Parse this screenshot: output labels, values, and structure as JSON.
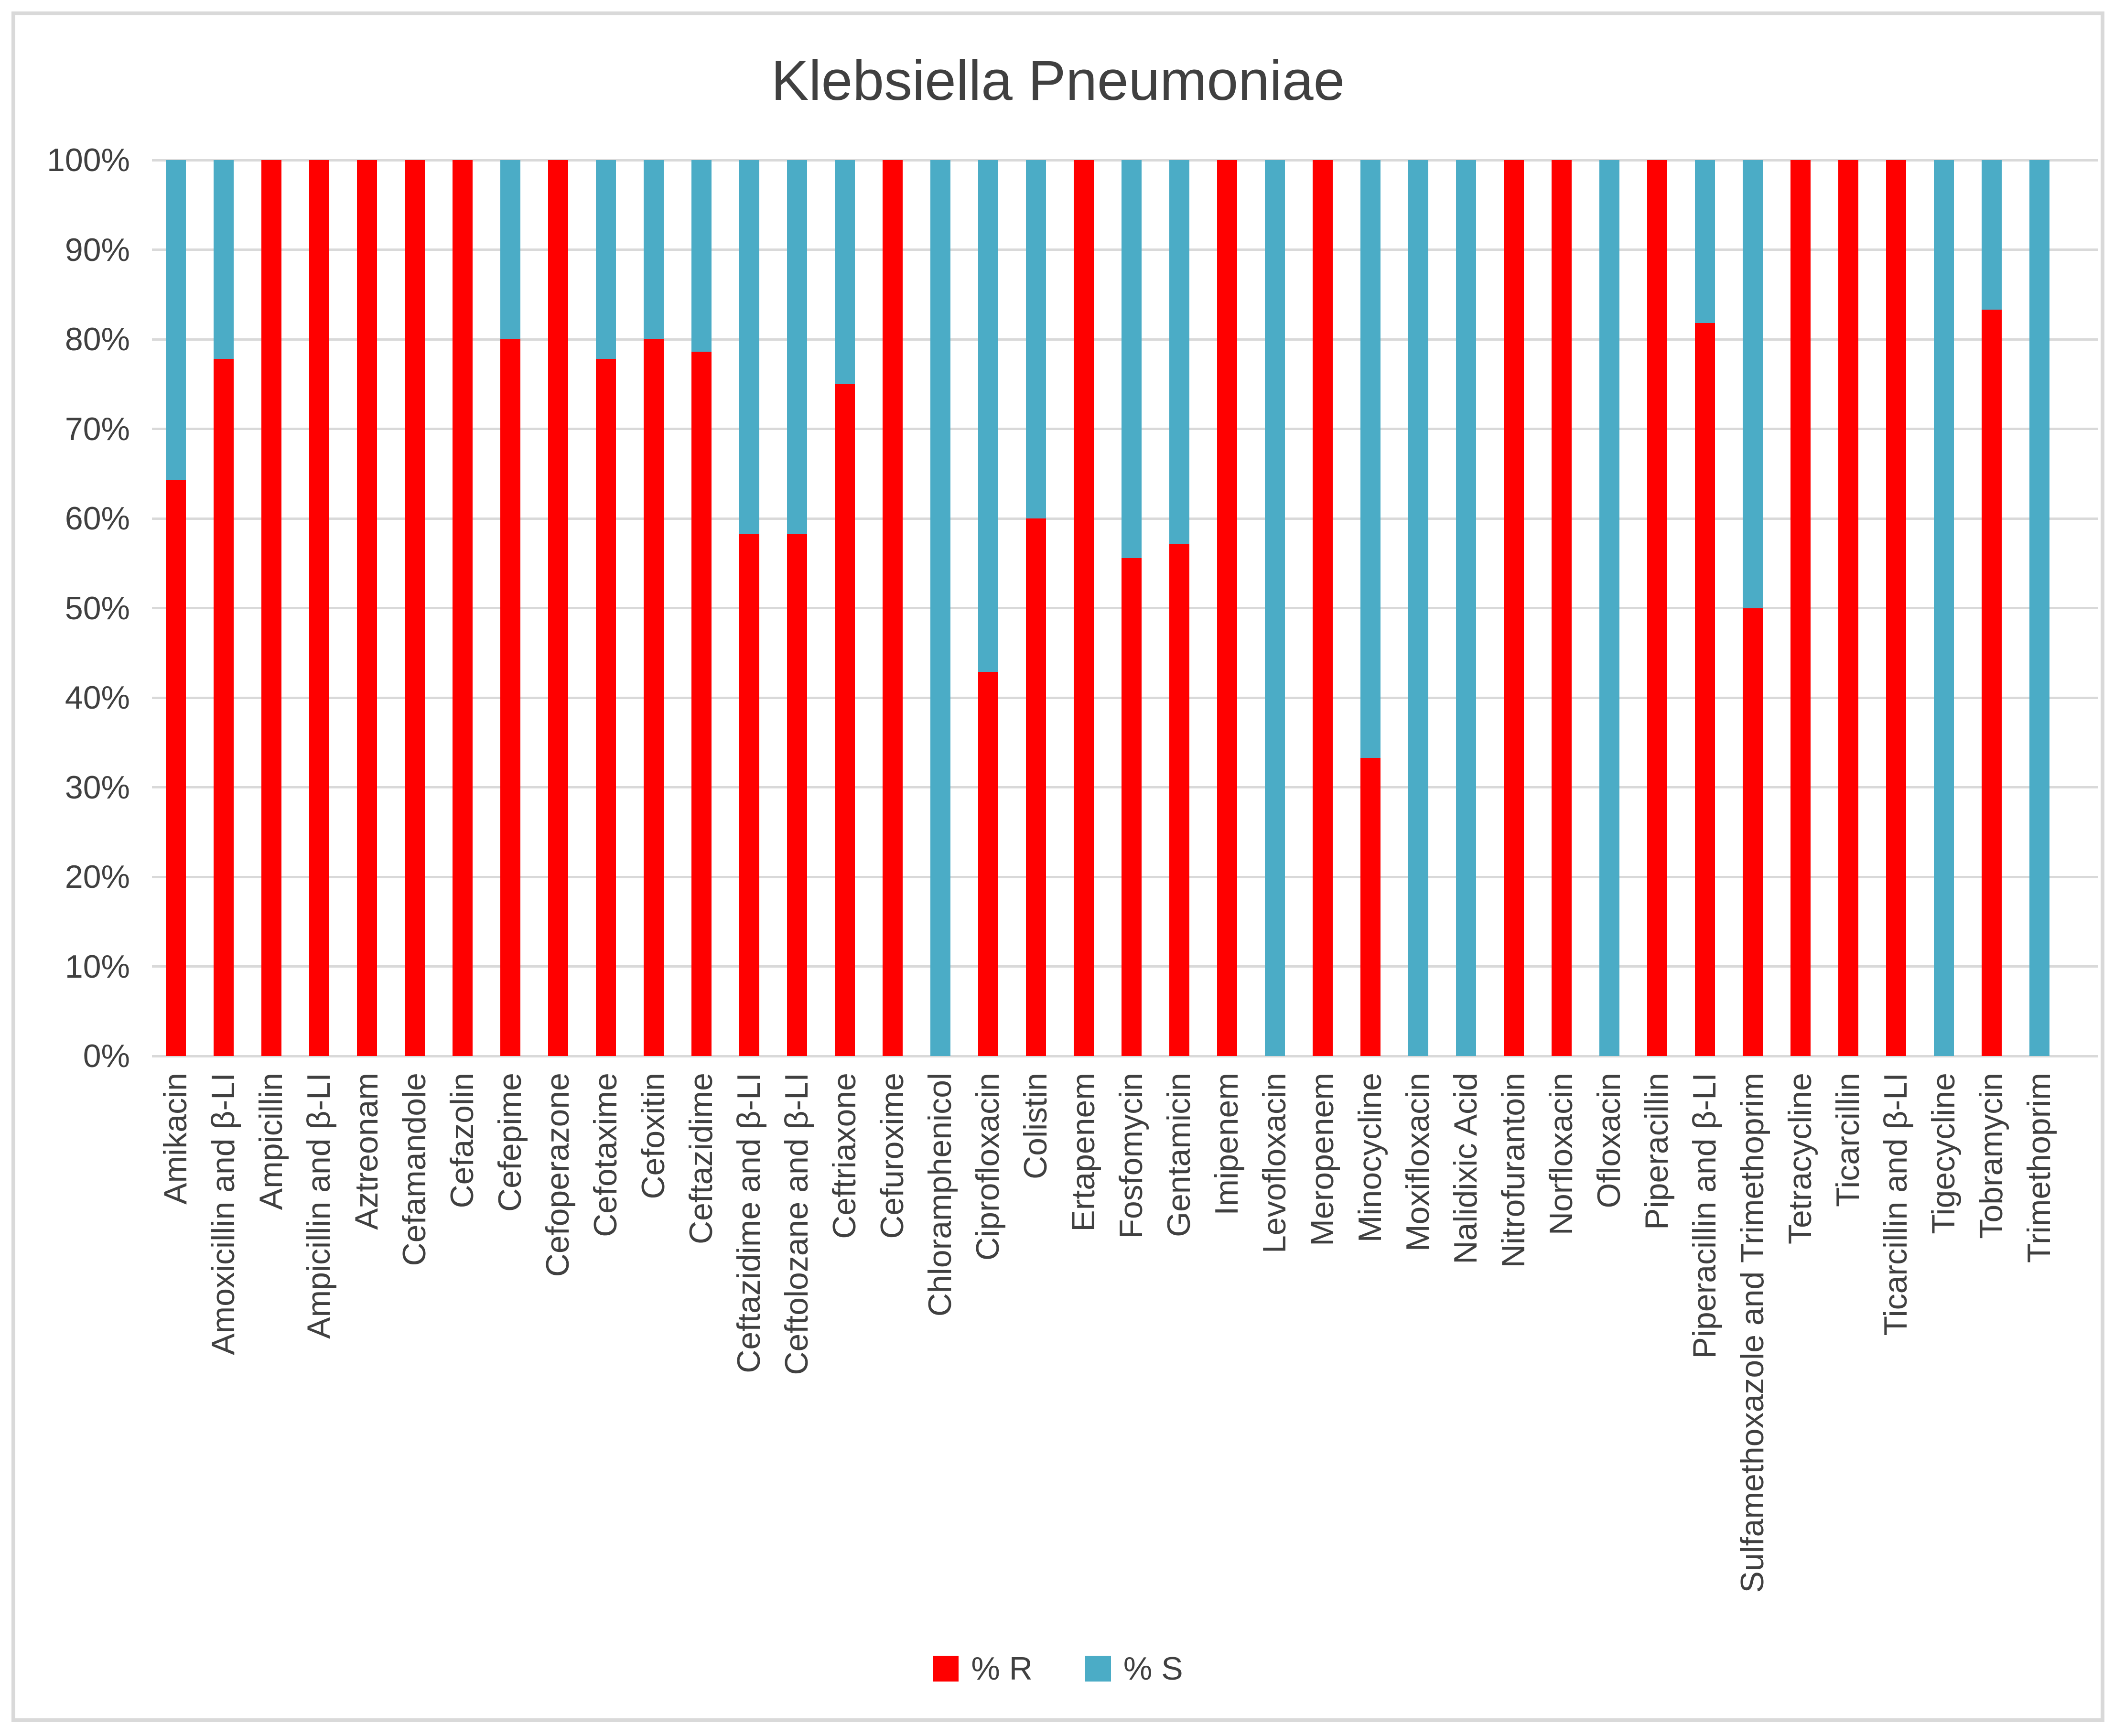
{
  "title": "Klebsiella Pneumoniae",
  "legend": [
    {
      "label": "% R",
      "color": "#ff0000"
    },
    {
      "label": "% S",
      "color": "#4bacc6"
    }
  ],
  "y_axis": {
    "ticks": [
      "0%",
      "10%",
      "20%",
      "30%",
      "40%",
      "50%",
      "60%",
      "70%",
      "80%",
      "90%",
      "100%"
    ]
  },
  "colors": {
    "resistant": "#ff0000",
    "susceptible": "#4bacc6",
    "gridline": "#d9d9d9",
    "text": "#404040",
    "frame_border": "#d9d9d9",
    "background": "#ffffff"
  },
  "chart_data": {
    "type": "bar",
    "stacked": true,
    "title": "Klebsiella Pneumoniae",
    "xlabel": "",
    "ylabel": "",
    "ylim": [
      0,
      100
    ],
    "y_tick_step": 10,
    "y_tick_format": "percent",
    "grid": "horizontal",
    "legend_position": "bottom",
    "categories": [
      "Amikacin",
      "Amoxicillin and β-LI",
      "Ampicillin",
      "Ampicillin and β-LI",
      "Aztreonam",
      "Cefamandole",
      "Cefazolin",
      "Cefepime",
      "Cefoperazone",
      "Cefotaxime",
      "Cefoxitin",
      "Ceftazidime",
      "Ceftazidime and β-LI",
      "Ceftolozane and β-LI",
      "Ceftriaxone",
      "Cefuroxime",
      "Chloramphenicol",
      "Ciprofloxacin",
      "Colistin",
      "Ertapenem",
      "Fosfomycin",
      "Gentamicin",
      "Imipenem",
      "Levofloxacin",
      "Meropenem",
      "Minocycline",
      "Moxifloxacin",
      "Nalidixic Acid",
      "Nitrofurantoin",
      "Norfloxacin",
      "Ofloxacin",
      "Piperacillin",
      "Piperacillin and β-LI",
      "Sulfamethoxazole and Trimethoprim",
      "Tetracycline",
      "Ticarcillin",
      "Ticarcillin and β-LI",
      "Tigecycline",
      "Tobramycin",
      "Trimethoprim"
    ],
    "series": [
      {
        "name": "% R",
        "color": "#ff0000",
        "values": [
          64.3,
          77.8,
          100,
          100,
          100,
          100,
          100,
          80,
          100,
          77.8,
          80,
          78.6,
          58.3,
          58.3,
          75,
          100,
          0,
          42.9,
          60,
          100,
          55.6,
          57.1,
          100,
          0,
          100,
          33.3,
          0,
          0,
          100,
          100,
          0,
          100,
          81.8,
          50,
          100,
          100,
          100,
          0,
          83.3,
          0
        ]
      },
      {
        "name": "% S",
        "color": "#4bacc6",
        "values": [
          35.7,
          22.2,
          0,
          0,
          0,
          0,
          0,
          20,
          0,
          22.2,
          20,
          21.4,
          41.7,
          41.7,
          25,
          0,
          100,
          57.1,
          40,
          0,
          44.4,
          42.9,
          0,
          100,
          0,
          66.7,
          100,
          100,
          0,
          0,
          100,
          0,
          18.2,
          50,
          0,
          0,
          0,
          100,
          16.7,
          100
        ]
      }
    ]
  }
}
